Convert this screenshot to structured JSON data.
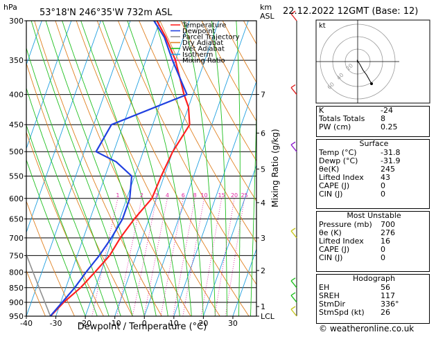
{
  "header": {
    "location": "53°18'N  246°35'W  732m  ASL",
    "datetime": "22.12.2022  12GMT  (Base: 12)",
    "hpa_label": "hPa",
    "km_label": "km",
    "asl_label": "ASL"
  },
  "legend": {
    "items": [
      {
        "label": "Temperature",
        "color": "#ff2020"
      },
      {
        "label": "Dewpoint",
        "color": "#2040e0"
      },
      {
        "label": "Parcel Trajectory",
        "color": "#909090"
      },
      {
        "label": "Dry Adiabat",
        "color": "#e08020"
      },
      {
        "label": "Wet Adiabat",
        "color": "#20c020"
      },
      {
        "label": "Isotherm",
        "color": "#20a0e0"
      },
      {
        "label": "Mixing Ratio",
        "color": "#e020a0"
      }
    ]
  },
  "chart_data": {
    "type": "line",
    "title": "Skew-T log-P diagram",
    "xlabel": "Dewpoint / Temperature (°C)",
    "ylabel": "hPa",
    "right_label": "Mixing Ratio (g/kg)",
    "xlim": [
      -40,
      38
    ],
    "ylim": [
      300,
      950
    ],
    "pressure_ticks": [
      300,
      350,
      400,
      450,
      500,
      550,
      600,
      650,
      700,
      750,
      800,
      850,
      900,
      950
    ],
    "temp_ticks": [
      -40,
      -30,
      -20,
      -10,
      0,
      10,
      20,
      30
    ],
    "temp_tick_labels": [
      "-40",
      "-30",
      "-20",
      "-10",
      "0",
      "10",
      "20",
      "30"
    ],
    "km_ticks": [
      {
        "p": 400,
        "label": "7"
      },
      {
        "p": 465,
        "label": "6"
      },
      {
        "p": 535,
        "label": "5"
      },
      {
        "p": 610,
        "label": "4"
      },
      {
        "p": 700,
        "label": "3"
      },
      {
        "p": 795,
        "label": "2"
      },
      {
        "p": 915,
        "label": "1"
      },
      {
        "p": 950,
        "label": "LCL"
      }
    ],
    "mixing_ratio_labels": [
      "1",
      "2",
      "3",
      "4",
      "6",
      "8",
      "10",
      "15",
      "20",
      "25"
    ],
    "mixing_ratio_values": [
      1,
      2,
      3,
      4,
      6,
      8,
      10,
      15,
      20,
      25
    ],
    "series": [
      {
        "name": "Temperature",
        "color": "#ff2020",
        "points": [
          [
            950,
            -31.8
          ],
          [
            900,
            -29
          ],
          [
            850,
            -25
          ],
          [
            800,
            -22
          ],
          [
            750,
            -19
          ],
          [
            700,
            -17.5
          ],
          [
            650,
            -15
          ],
          [
            600,
            -11.5
          ],
          [
            550,
            -11
          ],
          [
            500,
            -10
          ],
          [
            450,
            -7.5
          ],
          [
            420,
            -10
          ],
          [
            400,
            -13
          ],
          [
            350,
            -20
          ],
          [
            320,
            -26
          ],
          [
            300,
            -31
          ]
        ]
      },
      {
        "name": "Dewpoint",
        "color": "#2040e0",
        "points": [
          [
            950,
            -31.9
          ],
          [
            900,
            -29.5
          ],
          [
            850,
            -27
          ],
          [
            800,
            -25
          ],
          [
            750,
            -22.5
          ],
          [
            700,
            -20.5
          ],
          [
            650,
            -19
          ],
          [
            600,
            -19
          ],
          [
            550,
            -21
          ],
          [
            520,
            -28
          ],
          [
            500,
            -36
          ],
          [
            450,
            -34
          ],
          [
            400,
            -12
          ],
          [
            350,
            -21
          ],
          [
            320,
            -26.5
          ],
          [
            300,
            -32
          ]
        ]
      }
    ]
  },
  "hodograph": {
    "label": "kt",
    "ring_labels": [
      "20",
      "40",
      "60"
    ],
    "points_uv": [
      [
        0,
        -2
      ],
      [
        -1,
        3
      ],
      [
        4,
        -5
      ],
      [
        10,
        -16
      ],
      [
        16,
        -24
      ],
      [
        25,
        -40
      ]
    ]
  },
  "indices": {
    "rows": [
      {
        "label": "K",
        "value": "-24"
      },
      {
        "label": "Totals Totals",
        "value": "8"
      },
      {
        "label": "PW (cm)",
        "value": "0.25"
      }
    ]
  },
  "surface": {
    "title": "Surface",
    "rows": [
      {
        "label": "Temp (°C)",
        "value": "-31.8"
      },
      {
        "label": "Dewp (°C)",
        "value": "-31.9"
      },
      {
        "label": "θe(K)",
        "value": "245"
      },
      {
        "label": "Lifted Index",
        "value": "43"
      },
      {
        "label": "CAPE (J)",
        "value": "0"
      },
      {
        "label": "CIN (J)",
        "value": "0"
      }
    ]
  },
  "unstable": {
    "title": "Most Unstable",
    "rows": [
      {
        "label": "Pressure (mb)",
        "value": "700"
      },
      {
        "label": "θe (K)",
        "value": "276"
      },
      {
        "label": "Lifted Index",
        "value": "16"
      },
      {
        "label": "CAPE (J)",
        "value": "0"
      },
      {
        "label": "CIN (J)",
        "value": "0"
      }
    ]
  },
  "hodo_table": {
    "title": "Hodograph",
    "rows": [
      {
        "label": "EH",
        "value": "56"
      },
      {
        "label": "SREH",
        "value": "117"
      },
      {
        "label": "StmDir",
        "value": "336°"
      },
      {
        "label": "StmSpd (kt)",
        "value": "26"
      }
    ]
  },
  "footer": {
    "credit": "© weatheronline.co.uk"
  }
}
